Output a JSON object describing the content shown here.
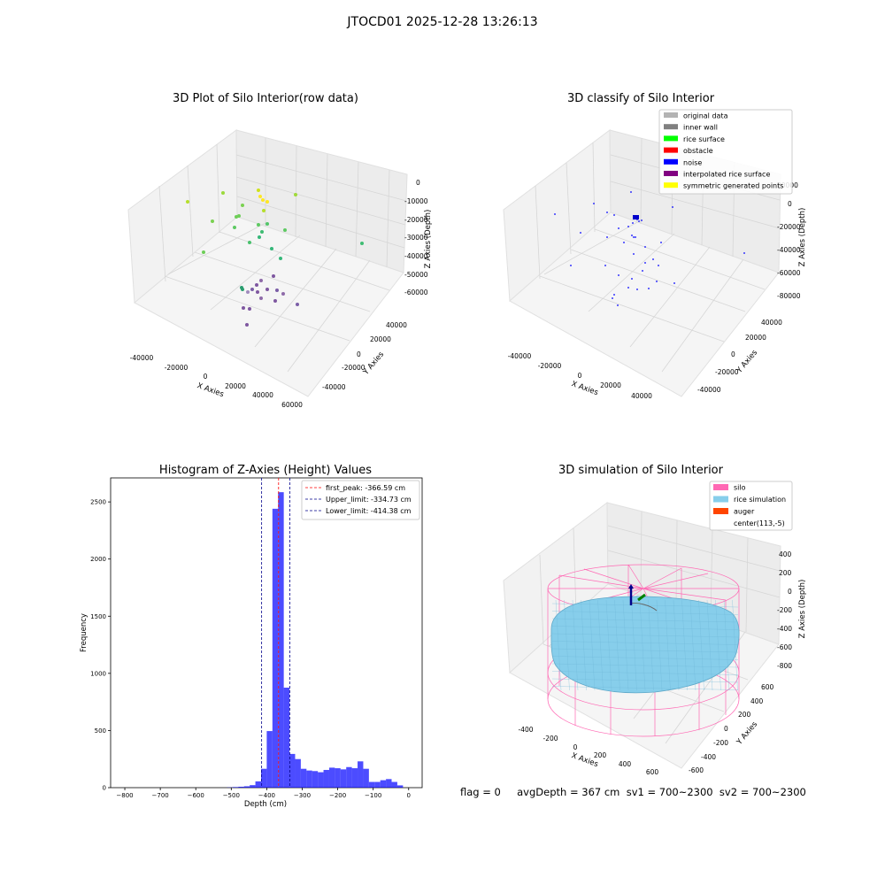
{
  "suptitle": "JTOCD01 2025-12-28 13:26:13",
  "status_text": "flag = 0     avgDepth = 367 cm  sv1 = 700~2300  sv2 = 700~2300",
  "chart_data": [
    {
      "type": "scatter",
      "title": "3D Plot of Silo Interior(row data)",
      "xlabel": "X Axies",
      "ylabel": "Y Axies",
      "zlabel": "Z Axies (Depth)",
      "x_ticks": [
        "-40000",
        "-20000",
        "0",
        "20000",
        "40000",
        "60000"
      ],
      "y_ticks": [
        "-40000",
        "-20000",
        "0",
        "20000",
        "40000"
      ],
      "z_ticks": [
        "0",
        "-10000",
        "-20000",
        "-30000",
        "-40000",
        "-50000",
        "-60000"
      ],
      "grid": true
    },
    {
      "type": "scatter",
      "title": "3D classify of Silo Interior",
      "xlabel": "X Axies",
      "ylabel": "Y Axies",
      "zlabel": "Z Axies (Depth)",
      "x_ticks": [
        "-40000",
        "-20000",
        "0",
        "20000",
        "40000"
      ],
      "y_ticks": [
        "-40000",
        "-20000",
        "0",
        "20000",
        "40000"
      ],
      "z_ticks": [
        "20000",
        "0",
        "-20000",
        "-40000",
        "-60000",
        "-80000"
      ],
      "legend_position": "top-right",
      "legend": [
        {
          "label": "original data",
          "color": "#b3b3b3"
        },
        {
          "label": "inner wall",
          "color": "#808080"
        },
        {
          "label": "rice surface",
          "color": "#00ff00"
        },
        {
          "label": "obstacle",
          "color": "#ff0000"
        },
        {
          "label": "noise",
          "color": "#0000ff"
        },
        {
          "label": "interpolated rice surface",
          "color": "#800080"
        },
        {
          "label": "symmetric generated points",
          "color": "#ffff00"
        }
      ],
      "grid": true
    },
    {
      "type": "bar",
      "title": "Histogram of Z-Axies (Height) Values",
      "xlabel": "Depth (cm)",
      "ylabel": "Frequency",
      "xlim": [
        -840,
        38
      ],
      "ylim": [
        0,
        2710
      ],
      "x_ticks": [
        -800,
        -700,
        -600,
        -500,
        -400,
        -300,
        -200,
        -100,
        0
      ],
      "y_ticks": [
        0,
        500,
        1000,
        1500,
        2000,
        2500
      ],
      "bin_width": 16,
      "bins": [
        {
          "start": -512,
          "count": 2
        },
        {
          "start": -496,
          "count": 5
        },
        {
          "start": -480,
          "count": 8
        },
        {
          "start": -464,
          "count": 12
        },
        {
          "start": -448,
          "count": 22
        },
        {
          "start": -432,
          "count": 55
        },
        {
          "start": -416,
          "count": 165
        },
        {
          "start": -400,
          "count": 495
        },
        {
          "start": -384,
          "count": 2440
        },
        {
          "start": -368,
          "count": 2585
        },
        {
          "start": -352,
          "count": 875
        },
        {
          "start": -336,
          "count": 295
        },
        {
          "start": -320,
          "count": 250
        },
        {
          "start": -304,
          "count": 165
        },
        {
          "start": -288,
          "count": 150
        },
        {
          "start": -272,
          "count": 145
        },
        {
          "start": -256,
          "count": 135
        },
        {
          "start": -240,
          "count": 155
        },
        {
          "start": -224,
          "count": 175
        },
        {
          "start": -208,
          "count": 170
        },
        {
          "start": -192,
          "count": 160
        },
        {
          "start": -176,
          "count": 180
        },
        {
          "start": -160,
          "count": 170
        },
        {
          "start": -144,
          "count": 230
        },
        {
          "start": -128,
          "count": 165
        },
        {
          "start": -112,
          "count": 50
        },
        {
          "start": -96,
          "count": 50
        },
        {
          "start": -80,
          "count": 65
        },
        {
          "start": -64,
          "count": 75
        },
        {
          "start": -48,
          "count": 50
        },
        {
          "start": -32,
          "count": 20
        }
      ],
      "bar_color": "#0000ff",
      "lines": [
        {
          "label": "first_peak: -366.59 cm",
          "value": -366.59,
          "color": "#ff0000"
        },
        {
          "label": "Upper_limit: -334.73 cm",
          "value": -334.73,
          "color": "#00008b"
        },
        {
          "label": "Lower_limit: -414.38 cm",
          "value": -414.38,
          "color": "#00008b"
        }
      ],
      "legend_position": "top-right"
    },
    {
      "type": "other",
      "title": "3D simulation of Silo Interior",
      "xlabel": "X Axies",
      "ylabel": "Y Axies",
      "zlabel": "Z Axies (Depth)",
      "x_ticks": [
        "-400",
        "-200",
        "0",
        "200",
        "400",
        "600"
      ],
      "y_ticks": [
        "-600",
        "-400",
        "-200",
        "0",
        "200",
        "400",
        "600"
      ],
      "z_ticks": [
        "400",
        "200",
        "0",
        "-200",
        "-400",
        "-600",
        "-800"
      ],
      "legend_position": "top-right",
      "legend": [
        {
          "label": "silo",
          "color": "#ff69b4"
        },
        {
          "label": "rice simulation",
          "color": "#87ceeb"
        },
        {
          "label": "auger",
          "color": "#ff4500"
        },
        {
          "label": "center(113,-5)",
          "color": ""
        }
      ],
      "grid": true
    }
  ]
}
